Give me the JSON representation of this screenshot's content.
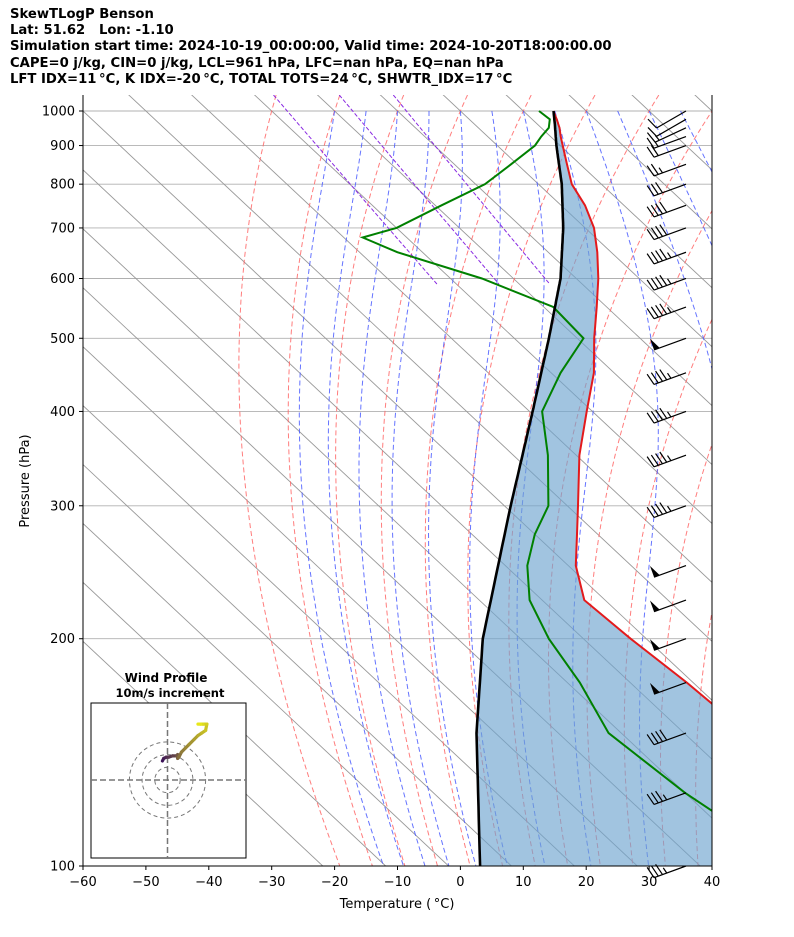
{
  "header": {
    "title": "SkewTLogP Benson",
    "location": "Lat: 51.62   Lon: -1.10",
    "times": "Simulation start time: 2024-10-19_00:00:00, Valid time: 2024-10-20T18:00:00.00",
    "parcel_indices": "CAPE=0 j/kg, CIN=0 j/kg, LCL=961 hPa, LFC=nan hPa, EQ=nan hPa",
    "stability_indices": "LFT IDX=11$^\\circ$C, K IDX=-20$^\\circ$C, TOTAL TOTS=24$^\\circ$C, SHWTR_IDX=17$^\\circ$C"
  },
  "header_display": {
    "stability_indices": "LFT IDX=11 °C, K IDX=-20 °C, TOTAL TOTS=24 °C, SHWTR_IDX=17 °C"
  },
  "colors": {
    "temperature": "#e31a1c",
    "dewpoint": "#008000",
    "parcel": "#000000",
    "cape_fill": "#6fa5d0",
    "dry_adiabats": "#ff6666",
    "moist_adiabats": "#4a5cff",
    "mixing_ratio": "#8a2be2",
    "isotherms": "#999999",
    "hodograph_low": "#3b1258",
    "hodograph_high": "#e7e719"
  },
  "chart_data": {
    "type": "line",
    "subtype": "skew-T log-P",
    "xlabel": "Temperature ($^\\circ$C)",
    "xlabel_display": "Temperature ( °C)",
    "ylabel": "Pressure (hPa)",
    "xlim": [
      -60,
      40
    ],
    "ylim": [
      1050,
      100
    ],
    "y_scale": "log",
    "x_ticks": [
      -60,
      -50,
      -40,
      -30,
      -20,
      -10,
      0,
      10,
      20,
      30,
      40
    ],
    "y_ticks": [
      1000,
      900,
      800,
      700,
      600,
      500,
      400,
      300,
      200,
      100
    ],
    "grid": true,
    "series": [
      {
        "name": "Temperature",
        "pressure": [
          1000,
          975,
          950,
          925,
          900,
          850,
          800,
          750,
          700,
          650,
          600,
          550,
          500,
          450,
          400,
          350,
          300,
          275,
          250,
          225,
          200,
          175,
          150,
          125,
          100
        ],
        "values": [
          14.8,
          13.9,
          12.9,
          11.6,
          10.4,
          7.9,
          5.3,
          3.8,
          1.4,
          -2.2,
          -6.5,
          -11.6,
          -17.3,
          -23.2,
          -30.9,
          -39.5,
          -48.3,
          -53.3,
          -58.8,
          -63.3,
          -62.5,
          -61.0,
          -60.0,
          -56.0,
          -56.5
        ]
      },
      {
        "name": "Dewpoint",
        "pressure": [
          1000,
          975,
          950,
          925,
          900,
          850,
          800,
          750,
          700,
          680,
          650,
          600,
          550,
          500,
          450,
          400,
          350,
          300,
          275,
          250,
          225,
          200,
          175,
          150,
          125,
          100
        ],
        "values": [
          12.5,
          12.8,
          11.2,
          8.5,
          6.0,
          -1.0,
          -8.5,
          -19.0,
          -30.0,
          -37.0,
          -34.0,
          -25.0,
          -18.5,
          -19.0,
          -28.5,
          -38.0,
          -44.5,
          -53.0,
          -60.0,
          -66.5,
          -72.0,
          -75.5,
          -78.0,
          -82.0,
          -80.0,
          -75.0
        ]
      },
      {
        "name": "Parcel",
        "pressure": [
          1000,
          961,
          900,
          800,
          700,
          600,
          500,
          400,
          300,
          200,
          150,
          100
        ],
        "values": [
          14.8,
          12.8,
          9.4,
          3.7,
          -3.5,
          -12.5,
          -24.5,
          -39.5,
          -59.0,
          -86.0,
          -103.0,
          -125.0
        ]
      }
    ],
    "wind_barbs": {
      "pressure": [
        1000,
        975,
        950,
        925,
        900,
        850,
        800,
        750,
        700,
        650,
        600,
        550,
        500,
        450,
        400,
        350,
        300,
        250,
        225,
        200,
        175,
        150,
        125,
        100
      ],
      "speed_kt": [
        10,
        10,
        15,
        15,
        20,
        25,
        30,
        40,
        40,
        45,
        45,
        45,
        50,
        45,
        45,
        45,
        45,
        50,
        50,
        50,
        50,
        40,
        35,
        35
      ],
      "direction_deg": [
        240,
        240,
        245,
        250,
        250,
        250,
        250,
        250,
        250,
        250,
        250,
        250,
        250,
        250,
        250,
        250,
        250,
        250,
        250,
        250,
        250,
        250,
        250,
        250
      ]
    },
    "hodograph": {
      "title": "Wind Profile",
      "subtitle": "10m/s increment",
      "rings_ms": [
        10,
        20,
        30
      ],
      "u": [
        -4,
        -3,
        -1,
        1,
        4,
        7,
        8,
        8,
        9,
        11,
        14,
        17,
        21,
        24,
        27,
        30,
        31,
        28,
        26,
        24
      ],
      "v": [
        15,
        17,
        18,
        18,
        19,
        19,
        20,
        17,
        18,
        22,
        25,
        28,
        32,
        35,
        37,
        39,
        44,
        44,
        44,
        44
      ]
    }
  }
}
